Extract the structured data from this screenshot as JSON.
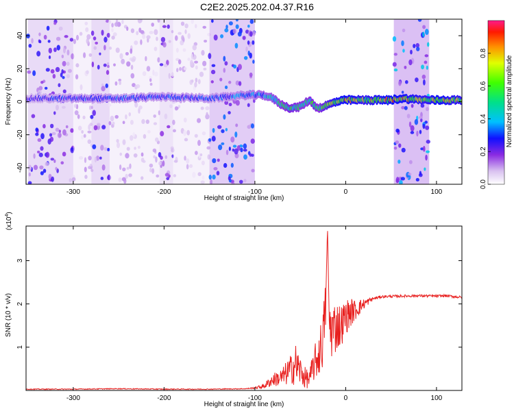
{
  "title": "C2E2.2025.202.04.37.R16",
  "chart_data": [
    {
      "type": "heatmap",
      "xlabel": "Height of straight line (km)",
      "ylabel": "Frequency (Hz)",
      "xlim": [
        -352,
        128
      ],
      "ylim": [
        -50,
        50
      ],
      "xticks": [
        -300,
        -200,
        -100,
        0,
        100
      ],
      "yticks": [
        -40,
        -20,
        0,
        20,
        40
      ],
      "colorbar": {
        "label": "Normalized spectral amplitude",
        "range": [
          0.0,
          1.0
        ],
        "ticks": [
          "0.0",
          "0.2",
          "0.4",
          "0.6",
          "0.8"
        ]
      },
      "ridge": {
        "x": [
          -350,
          -300,
          -250,
          -200,
          -150,
          -110,
          -90,
          -80,
          -70,
          -60,
          -50,
          -40,
          -35,
          -30,
          -20,
          -10,
          0,
          20,
          50,
          60,
          90,
          100,
          128
        ],
        "freq": [
          2,
          2,
          2,
          3,
          2,
          4,
          4,
          2,
          -2,
          -4,
          -3,
          1,
          -2,
          -4,
          -2,
          0,
          1,
          1,
          1,
          2,
          1,
          1,
          1
        ],
        "peak": [
          0.25,
          0.3,
          0.3,
          0.3,
          0.3,
          0.35,
          0.4,
          0.45,
          0.5,
          0.55,
          0.5,
          0.5,
          0.55,
          0.5,
          0.65,
          0.75,
          0.8,
          0.7,
          0.8,
          0.8,
          0.7,
          0.8,
          0.7
        ]
      },
      "noise_bands": [
        {
          "from": -350,
          "to": -300,
          "level": 0.25
        },
        {
          "from": -300,
          "to": -280,
          "level": 0.1
        },
        {
          "from": -280,
          "to": -260,
          "level": 0.25
        },
        {
          "from": -260,
          "to": -205,
          "level": 0.1
        },
        {
          "from": -205,
          "to": -190,
          "level": 0.2
        },
        {
          "from": -190,
          "to": -150,
          "level": 0.1
        },
        {
          "from": -150,
          "to": -100,
          "level": 0.3
        },
        {
          "from": 53,
          "to": 92,
          "level": 0.35
        }
      ]
    },
    {
      "type": "line",
      "xlabel": "Height of straight line (km)",
      "ylabel": "SNR (10 * v/v)",
      "multiplier": "(x10",
      "multiplier_exp": "4",
      "xlim": [
        -352,
        128
      ],
      "ylim": [
        0,
        3.8
      ],
      "xticks": [
        -300,
        -200,
        -100,
        0,
        100
      ],
      "yticks": [
        1,
        2,
        3
      ],
      "color": "#e8201f",
      "series": [
        {
          "x": [
            -352,
            -300,
            -250,
            -200,
            -150,
            -110,
            -100,
            -90,
            -80,
            -70,
            -60,
            -55,
            -50,
            -45,
            -40,
            -35,
            -30,
            -25,
            -22,
            -20,
            -18,
            -15,
            -10,
            -5,
            0,
            5,
            10,
            20,
            30,
            40,
            60,
            80,
            100,
            110,
            128
          ],
          "y": [
            0.03,
            0.03,
            0.04,
            0.03,
            0.03,
            0.04,
            0.06,
            0.1,
            0.25,
            0.3,
            0.5,
            0.6,
            0.45,
            0.3,
            0.25,
            0.6,
            0.8,
            1.2,
            2.0,
            3.8,
            1.5,
            1.4,
            1.5,
            1.5,
            1.7,
            1.8,
            1.85,
            2.0,
            2.12,
            2.17,
            2.18,
            2.19,
            2.18,
            2.19,
            2.15
          ],
          "noise": [
            0.01,
            0.01,
            0.01,
            0.01,
            0.01,
            0.01,
            0.02,
            0.06,
            0.15,
            0.22,
            0.35,
            0.5,
            0.35,
            0.25,
            0.2,
            0.4,
            0.5,
            0.7,
            0.6,
            0.2,
            0.6,
            0.7,
            0.6,
            0.5,
            0.4,
            0.35,
            0.25,
            0.12,
            0.04,
            0.03,
            0.03,
            0.03,
            0.03,
            0.03,
            0.03
          ]
        }
      ]
    }
  ]
}
